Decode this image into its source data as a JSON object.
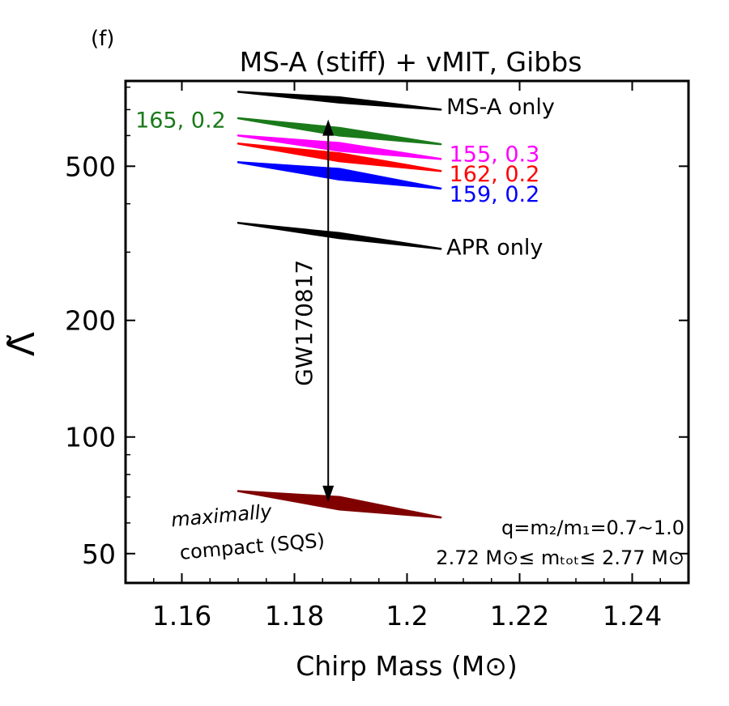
{
  "panel_label": "(f)",
  "chart_data": {
    "type": "line",
    "title": "MS-A (stiff) + vMIT, Gibbs",
    "xlabel": "Chirp Mass (M⊙)",
    "ylabel": "Λ̃",
    "xlim": [
      1.15,
      1.25
    ],
    "ylim": [
      42,
      830
    ],
    "yscale": "log",
    "x_ticks": [
      1.16,
      1.18,
      1.2,
      1.22,
      1.24
    ],
    "x_tick_labels": [
      "1.16",
      "1.18",
      "1.2",
      "1.22",
      "1.24"
    ],
    "y_ticks": [
      50,
      100,
      200,
      500
    ],
    "y_tick_labels": [
      "50",
      "100",
      "200",
      "500"
    ],
    "series": [
      {
        "name": "MS-A only",
        "color": "#000000",
        "x": [
          1.17,
          1.206
        ],
        "upper": [
          778,
          700
        ],
        "lower": [
          778,
          700
        ],
        "bulge": [
          1.188,
          730,
          753
        ]
      },
      {
        "name": "165, 0.2",
        "color": "#1a7a1a",
        "x": [
          1.17,
          1.206
        ],
        "upper": [
          665,
          570
        ],
        "lower": [
          665,
          570
        ],
        "bulge": [
          1.188,
          600,
          628
        ]
      },
      {
        "name": "155, 0.3",
        "color": "#ff00ff",
        "x": [
          1.17,
          1.206
        ],
        "upper": [
          600,
          522
        ],
        "lower": [
          600,
          522
        ],
        "bulge": [
          1.188,
          548,
          574
        ]
      },
      {
        "name": "162, 0.2",
        "color": "#ff0000",
        "x": [
          1.17,
          1.206
        ],
        "upper": [
          572,
          486
        ],
        "lower": [
          572,
          486
        ],
        "bulge": [
          1.188,
          515,
          540
        ]
      },
      {
        "name": "159, 0.2",
        "color": "#0000ff",
        "x": [
          1.17,
          1.206
        ],
        "upper": [
          512,
          438
        ],
        "lower": [
          512,
          438
        ],
        "bulge": [
          1.188,
          462,
          492
        ]
      },
      {
        "name": "APR only",
        "color": "#000000",
        "x": [
          1.17,
          1.206
        ],
        "upper": [
          357,
          306
        ],
        "lower": [
          357,
          306
        ],
        "bulge": [
          1.188,
          326,
          336
        ]
      },
      {
        "name": "maximally compact (SQS)",
        "color": "#800000",
        "x": [
          1.17,
          1.206
        ],
        "upper": [
          72.5,
          62
        ],
        "lower": [
          72.5,
          62
        ],
        "bulge": [
          1.188,
          65,
          70
        ]
      }
    ],
    "labels": [
      {
        "text": "MS-A only",
        "x": 1.207,
        "y": 715,
        "color": "#000000",
        "anchor": "start"
      },
      {
        "text": "165, 0.2",
        "x": 1.1678,
        "y": 660,
        "color": "#1a7a1a",
        "anchor": "end"
      },
      {
        "text": "155, 0.3",
        "x": 1.2075,
        "y": 540,
        "color": "#ff00ff",
        "anchor": "start"
      },
      {
        "text": "162, 0.2",
        "x": 1.2075,
        "y": 480,
        "color": "#ff0000",
        "anchor": "start"
      },
      {
        "text": "159, 0.2",
        "x": 1.2075,
        "y": 425,
        "color": "#0000ff",
        "anchor": "start"
      },
      {
        "text": "APR only",
        "x": 1.207,
        "y": 310,
        "color": "#000000",
        "anchor": "start"
      }
    ],
    "annotations": {
      "arrow_label": "GW170817",
      "arrow_x": 1.186,
      "arrow_y": [
        68,
        660
      ],
      "sqs_line1": "maximally",
      "sqs_line2": "compact (SQS)",
      "q_text": "q=m₂/m₁=0.7~1.0",
      "mtot_text": "2.72 M⊙≤ mₜₒₜ≤ 2.77 M⊙"
    }
  }
}
